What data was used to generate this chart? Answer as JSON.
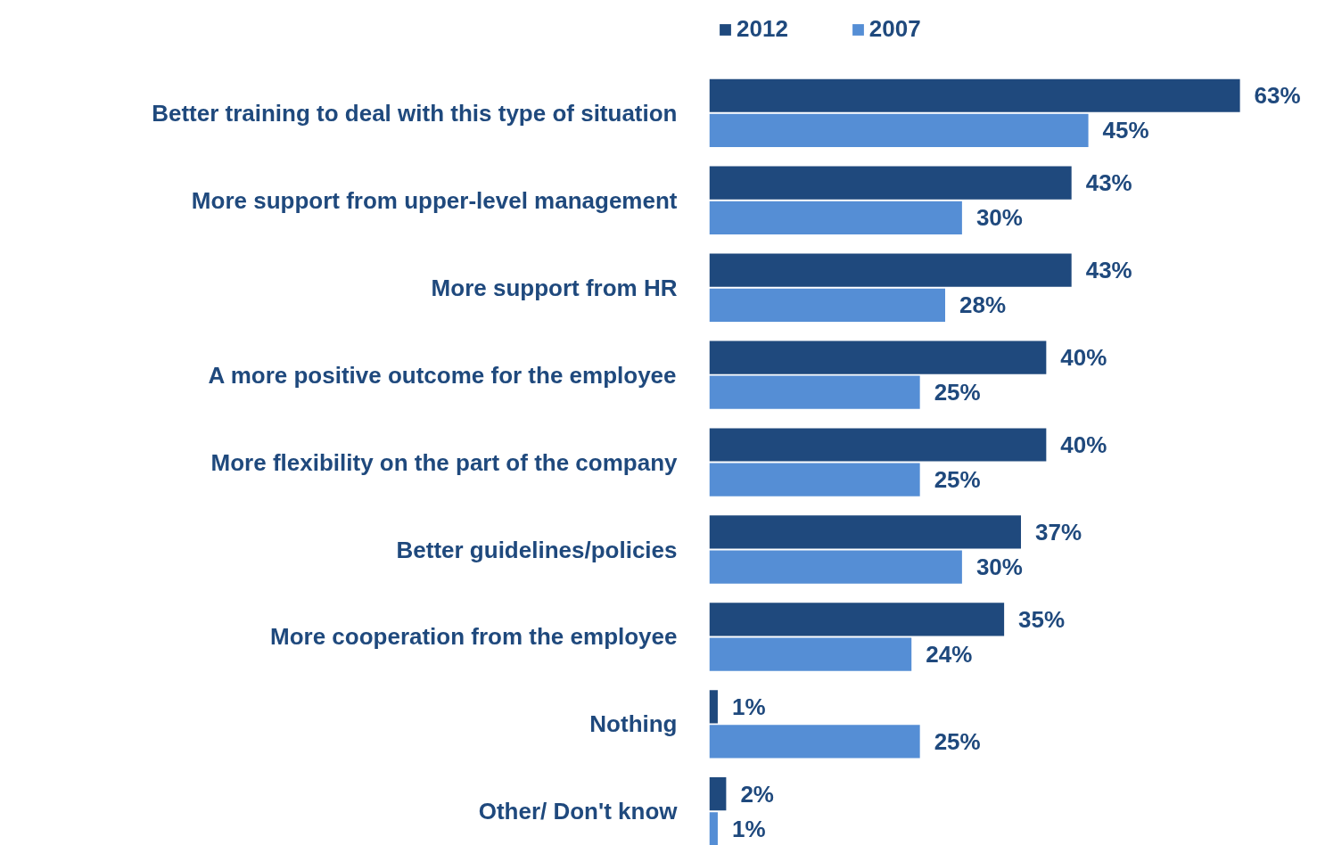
{
  "chart_data": {
    "type": "bar",
    "orientation": "horizontal",
    "tick_labels": "y",
    "legend": "top",
    "grid": false,
    "categories": [
      "Better training to deal with this type of situation",
      "More support from upper-level management",
      "More support from HR",
      "A more positive outcome for the employee",
      "More flexibility on the part of the company",
      "Better guidelines/policies",
      "More cooperation from the employee",
      "Nothing",
      "Other/ Don't know"
    ],
    "series": [
      {
        "name": "2012",
        "color": "#1f497d",
        "values": [
          63,
          43,
          43,
          40,
          40,
          37,
          35,
          1,
          2
        ],
        "value_labels": [
          "63%",
          "43%",
          "43%",
          "40%",
          "40%",
          "37%",
          "35%",
          "1%",
          "2%"
        ]
      },
      {
        "name": "2007",
        "color": "#558ed5",
        "values": [
          45,
          30,
          28,
          25,
          25,
          30,
          24,
          25,
          1
        ],
        "value_labels": [
          "45%",
          "30%",
          "28%",
          "25%",
          "25%",
          "30%",
          "24%",
          "25%",
          "1%"
        ]
      }
    ]
  }
}
